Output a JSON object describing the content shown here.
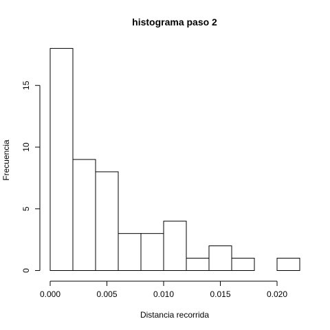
{
  "chart_data": {
    "type": "histogram",
    "title": "histograma paso  2",
    "xlabel": "Distancia recorrida",
    "ylabel": "Frecuencia",
    "bins": [
      {
        "start": 0.0,
        "end": 0.002,
        "count": 18
      },
      {
        "start": 0.002,
        "end": 0.004,
        "count": 9
      },
      {
        "start": 0.004,
        "end": 0.006,
        "count": 8
      },
      {
        "start": 0.006,
        "end": 0.008,
        "count": 3
      },
      {
        "start": 0.008,
        "end": 0.01,
        "count": 3
      },
      {
        "start": 0.01,
        "end": 0.012,
        "count": 4
      },
      {
        "start": 0.012,
        "end": 0.014,
        "count": 1
      },
      {
        "start": 0.014,
        "end": 0.016,
        "count": 2
      },
      {
        "start": 0.016,
        "end": 0.018,
        "count": 1
      },
      {
        "start": 0.018,
        "end": 0.02,
        "count": 0
      },
      {
        "start": 0.02,
        "end": 0.022,
        "count": 1
      }
    ],
    "xticks": [
      {
        "value": 0.0,
        "label": "0.000"
      },
      {
        "value": 0.005,
        "label": "0.005"
      },
      {
        "value": 0.01,
        "label": "0.010"
      },
      {
        "value": 0.015,
        "label": "0.015"
      },
      {
        "value": 0.02,
        "label": "0.020"
      }
    ],
    "yticks": [
      {
        "value": 0,
        "label": "0"
      },
      {
        "value": 5,
        "label": "5"
      },
      {
        "value": 10,
        "label": "10"
      },
      {
        "value": 15,
        "label": "15"
      }
    ],
    "grid": false,
    "bar_fill": "#ffffff",
    "bar_stroke": "#000000"
  }
}
